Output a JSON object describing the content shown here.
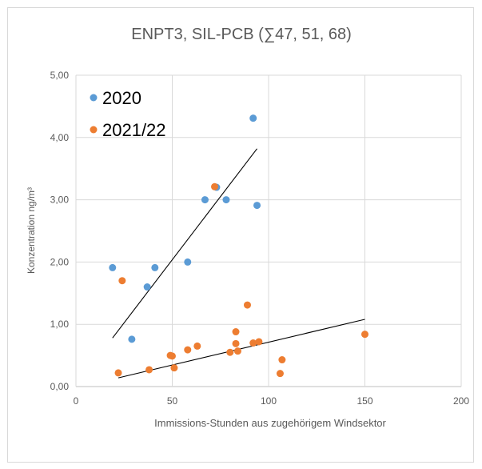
{
  "chart_data": {
    "type": "scatter",
    "title": "ENPT3, SIL-PCB (∑47, 51, 68)",
    "xlabel": "Immissions-Stunden aus zugehörigem Windsektor",
    "ylabel": "Konzentration  ng/m³",
    "xlim": [
      0,
      200
    ],
    "ylim": [
      0,
      5
    ],
    "x_ticks": [
      "0",
      "50",
      "100",
      "150",
      "200"
    ],
    "y_ticks": [
      "0,00",
      "1,00",
      "2,00",
      "3,00",
      "4,00",
      "5,00"
    ],
    "grid": true,
    "legend_position": "top-left",
    "series": [
      {
        "name": "2020",
        "color": "#5b9bd5",
        "points": [
          {
            "x": 19,
            "y": 1.91
          },
          {
            "x": 29,
            "y": 0.76
          },
          {
            "x": 37,
            "y": 1.6
          },
          {
            "x": 41,
            "y": 1.91
          },
          {
            "x": 58,
            "y": 2.0
          },
          {
            "x": 67,
            "y": 3.0
          },
          {
            "x": 73,
            "y": 3.2
          },
          {
            "x": 78,
            "y": 3.0
          },
          {
            "x": 92,
            "y": 4.31
          },
          {
            "x": 94,
            "y": 2.91
          }
        ],
        "trendline": [
          {
            "x": 19,
            "y": 0.78
          },
          {
            "x": 94,
            "y": 3.82
          }
        ]
      },
      {
        "name": "2021/22",
        "color": "#ed7d31",
        "points": [
          {
            "x": 22,
            "y": 0.22
          },
          {
            "x": 24,
            "y": 1.7
          },
          {
            "x": 38,
            "y": 0.27
          },
          {
            "x": 49,
            "y": 0.5
          },
          {
            "x": 50,
            "y": 0.49
          },
          {
            "x": 51,
            "y": 0.3
          },
          {
            "x": 58,
            "y": 0.59
          },
          {
            "x": 63,
            "y": 0.65
          },
          {
            "x": 72,
            "y": 3.21
          },
          {
            "x": 80,
            "y": 0.55
          },
          {
            "x": 83,
            "y": 0.88
          },
          {
            "x": 83,
            "y": 0.69
          },
          {
            "x": 84,
            "y": 0.57
          },
          {
            "x": 89,
            "y": 1.31
          },
          {
            "x": 92,
            "y": 0.7
          },
          {
            "x": 95,
            "y": 0.72
          },
          {
            "x": 106,
            "y": 0.21
          },
          {
            "x": 107,
            "y": 0.43
          },
          {
            "x": 150,
            "y": 0.84
          }
        ],
        "trendline": [
          {
            "x": 22,
            "y": 0.14
          },
          {
            "x": 150,
            "y": 1.08
          }
        ]
      }
    ]
  }
}
